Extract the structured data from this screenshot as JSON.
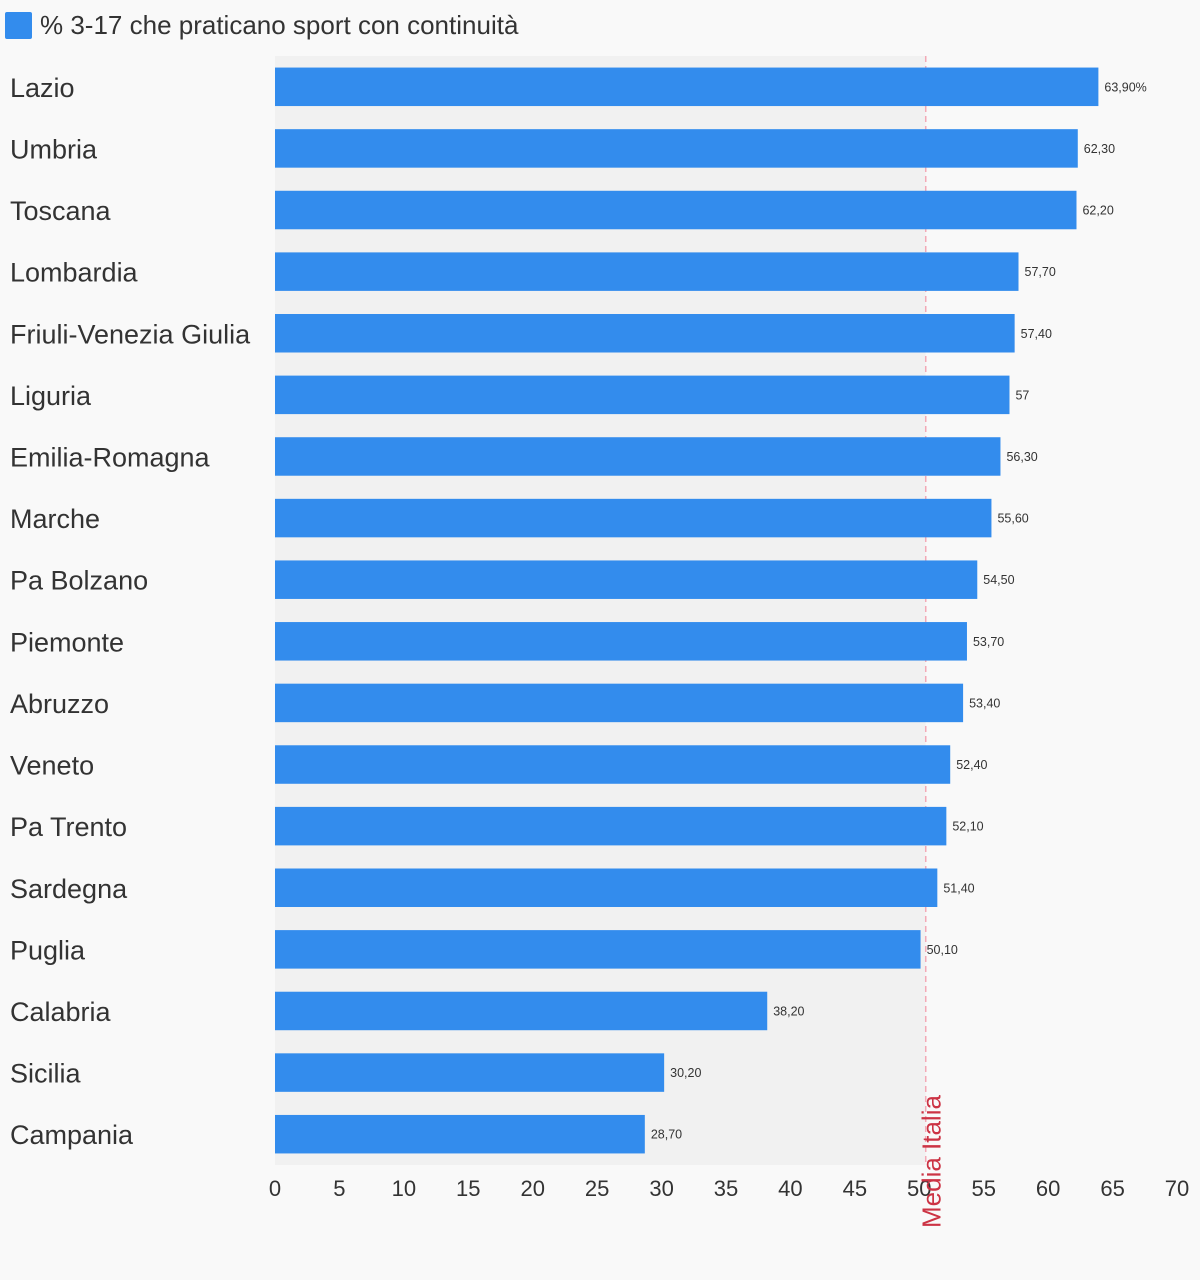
{
  "colors": {
    "bar": "#338ced",
    "plot_background": "#f1f1f1",
    "page_background": "#f9f9f9",
    "reference_line": "#f3a9b6",
    "reference_label": "#cc3344",
    "text": "#333333"
  },
  "chart_data": {
    "type": "bar",
    "orientation": "horizontal",
    "series": [
      {
        "name": "% 3-17 che praticano sport con continuità",
        "values": [
          63.9,
          62.3,
          62.2,
          57.7,
          57.4,
          57,
          56.3,
          55.6,
          54.5,
          53.7,
          53.4,
          52.4,
          52.1,
          51.4,
          50.1,
          38.2,
          30.2,
          28.7
        ],
        "data_labels": [
          "63,90%",
          "62,30",
          "62,20",
          "57,70",
          "57,40",
          "57",
          "56,30",
          "55,60",
          "54,50",
          "53,70",
          "53,40",
          "52,40",
          "52,10",
          "51,40",
          "50,10",
          "38,20",
          "30,20",
          "28,70"
        ]
      }
    ],
    "categories": [
      "Lazio",
      "Umbria",
      "Toscana",
      "Lombardia",
      "Friuli-Venezia Giulia",
      "Liguria",
      "Emilia-Romagna",
      "Marche",
      "Pa Bolzano",
      "Piemonte",
      "Abruzzo",
      "Veneto",
      "Pa Trento",
      "Sardegna",
      "Puglia",
      "Calabria",
      "Sicilia",
      "Campania"
    ],
    "xlim": [
      0,
      70
    ],
    "xticks": [
      0,
      5,
      10,
      15,
      20,
      25,
      30,
      35,
      40,
      45,
      50,
      55,
      60,
      65,
      70
    ],
    "reference_line": {
      "value": 50.5,
      "label": "Media Italia"
    },
    "legend_position": "top-left",
    "grid": false
  }
}
